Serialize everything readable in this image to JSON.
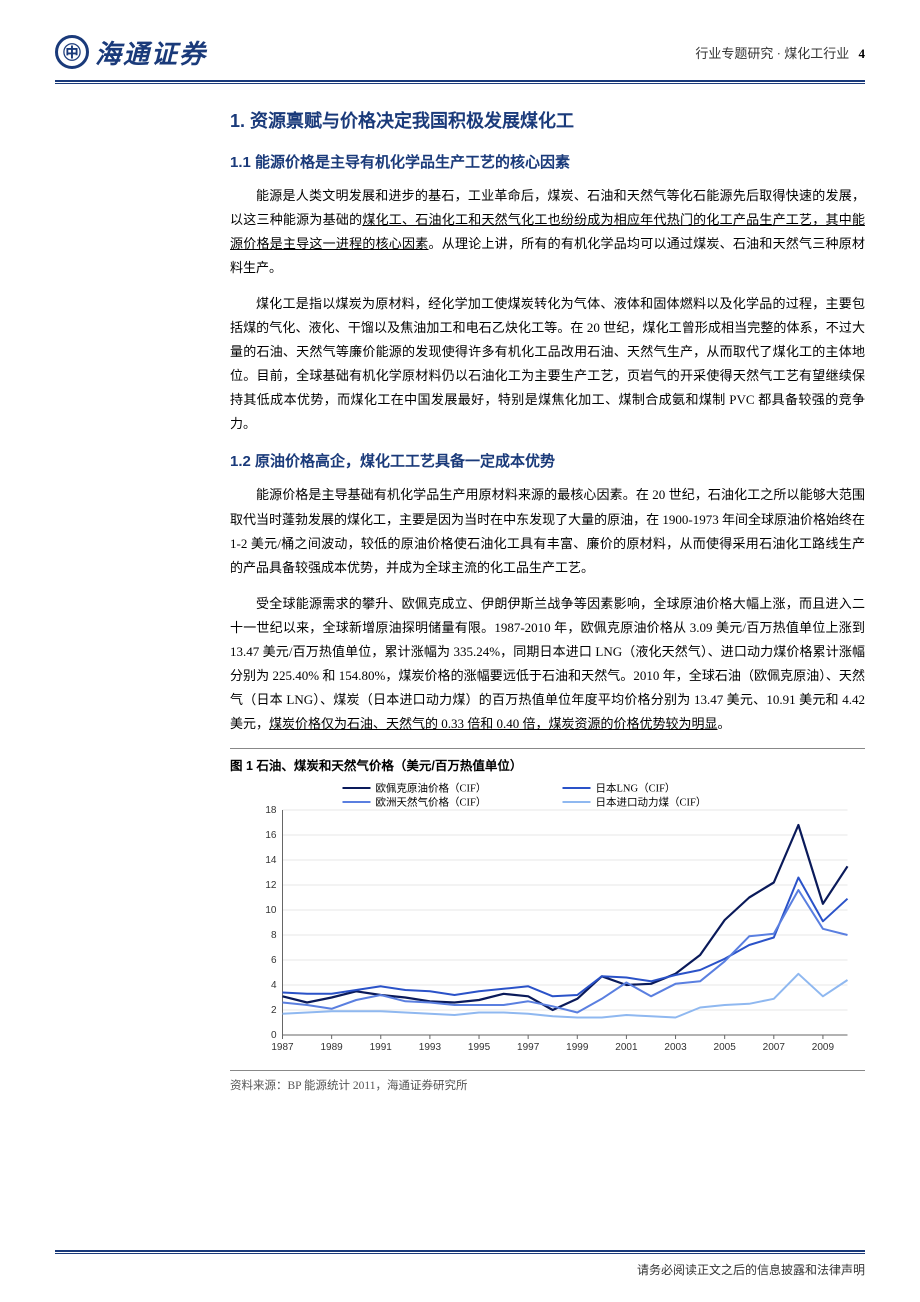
{
  "header": {
    "logo_text": "海通证券",
    "meta_category": "行业专题研究 · 煤化工行业",
    "page_number": "4"
  },
  "section1": {
    "title": "1. 资源禀赋与价格决定我国积极发展煤化工"
  },
  "section11": {
    "title": "1.1 能源价格是主导有机化学品生产工艺的核心因素",
    "p1_a": "能源是人类文明发展和进步的基石，工业革命后，煤炭、石油和天然气等化石能源先后取得快速的发展，以这三种能源为基础的",
    "p1_u": "煤化工、石油化工和天然气化工也纷纷成为相应年代热门的化工产品生产工艺，其中能源价格是主导这一进程的核心因素",
    "p1_b": "。从理论上讲，所有的有机化学品均可以通过煤炭、石油和天然气三种原材料生产。",
    "p2": "煤化工是指以煤炭为原材料，经化学加工使煤炭转化为气体、液体和固体燃料以及化学品的过程，主要包括煤的气化、液化、干馏以及焦油加工和电石乙炔化工等。在 20 世纪，煤化工曾形成相当完整的体系，不过大量的石油、天然气等廉价能源的发现使得许多有机化工品改用石油、天然气生产，从而取代了煤化工的主体地位。目前，全球基础有机化学原材料仍以石油化工为主要生产工艺，页岩气的开采使得天然气工艺有望继续保持其低成本优势，而煤化工在中国发展最好，特别是煤焦化加工、煤制合成氨和煤制 PVC 都具备较强的竞争力。"
  },
  "section12": {
    "title": "1.2 原油价格高企，煤化工工艺具备一定成本优势",
    "p1": "能源价格是主导基础有机化学品生产用原材料来源的最核心因素。在 20 世纪，石油化工之所以能够大范围取代当时蓬勃发展的煤化工，主要是因为当时在中东发现了大量的原油，在 1900-1973 年间全球原油价格始终在 1-2 美元/桶之间波动，较低的原油价格使石油化工具有丰富、廉价的原材料，从而使得采用石油化工路线生产的产品具备较强成本优势，并成为全球主流的化工品生产工艺。",
    "p2_a": "受全球能源需求的攀升、欧佩克成立、伊朗伊斯兰战争等因素影响，全球原油价格大幅上涨，而且进入二十一世纪以来，全球新增原油探明储量有限。1987-2010 年，欧佩克原油价格从 3.09 美元/百万热值单位上涨到 13.47 美元/百万热值单位，累计涨幅为 335.24%，同期日本进口 LNG（液化天然气）、进口动力煤价格累计涨幅分别为 225.40% 和 154.80%，煤炭价格的涨幅要远低于石油和天然气。2010 年，全球石油（欧佩克原油）、天然气（日本 LNG）、煤炭（日本进口动力煤）的百万热值单位年度平均价格分别为 13.47 美元、10.91 美元和 4.42 美元，",
    "p2_u": "煤炭价格仅为石油、天然气的 0.33 倍和 0.40 倍，煤炭资源的价格优势较为明显",
    "p2_b": "。"
  },
  "figure1": {
    "title": "图 1  石油、煤炭和天然气价格（美元/百万热值单位）",
    "source": "资料来源：BP 能源统计 2011，海通证券研究所",
    "chart": {
      "type": "line",
      "background_color": "#ffffff",
      "grid_color": "#d0d0d0",
      "axis_color": "#666666",
      "tick_fontsize": 10,
      "legend_fontsize": 10.5,
      "ylim": [
        0,
        18
      ],
      "ytick_step": 2,
      "x_labels": [
        "1987",
        "1989",
        "1991",
        "1993",
        "1995",
        "1997",
        "1999",
        "2001",
        "2003",
        "2005",
        "2007",
        "2009"
      ],
      "x_index": [
        0,
        1,
        2,
        3,
        4,
        5,
        6,
        7,
        8,
        9,
        10,
        11,
        12,
        13,
        14,
        15,
        16,
        17,
        18,
        19,
        20,
        21,
        22,
        23
      ],
      "series": [
        {
          "name": "欧佩克原油价格（CIF）",
          "color": "#0a1a5a",
          "width": 2.2,
          "values": [
            3.1,
            2.6,
            3.0,
            3.5,
            3.2,
            3.0,
            2.7,
            2.6,
            2.8,
            3.3,
            3.1,
            2.0,
            2.9,
            4.7,
            4.0,
            4.1,
            4.9,
            6.4,
            9.2,
            11.0,
            12.2,
            16.8,
            10.5,
            13.5
          ]
        },
        {
          "name": "日本LNG（CIF）",
          "color": "#2a52c8",
          "width": 2.0,
          "values": [
            3.4,
            3.3,
            3.3,
            3.6,
            3.9,
            3.6,
            3.5,
            3.2,
            3.5,
            3.7,
            3.9,
            3.1,
            3.2,
            4.7,
            4.6,
            4.3,
            4.8,
            5.2,
            6.1,
            7.2,
            7.8,
            12.6,
            9.1,
            10.9
          ]
        },
        {
          "name": "欧洲天然气价格（CIF）",
          "color": "#5a7fe0",
          "width": 2.0,
          "values": [
            2.6,
            2.4,
            2.1,
            2.8,
            3.2,
            2.7,
            2.6,
            2.4,
            2.4,
            2.4,
            2.7,
            2.3,
            1.8,
            2.9,
            4.2,
            3.1,
            4.1,
            4.3,
            5.9,
            7.9,
            8.1,
            11.6,
            8.5,
            8.0
          ]
        },
        {
          "name": "日本进口动力煤（CIF）",
          "color": "#8fb8f0",
          "width": 2.0,
          "values": [
            1.7,
            1.8,
            1.9,
            1.9,
            1.9,
            1.8,
            1.7,
            1.6,
            1.8,
            1.8,
            1.7,
            1.5,
            1.4,
            1.4,
            1.6,
            1.5,
            1.4,
            2.2,
            2.4,
            2.5,
            2.9,
            4.9,
            3.1,
            4.4
          ]
        }
      ]
    }
  },
  "footer": {
    "disclaimer": "请务必阅读正文之后的信息披露和法律声明"
  }
}
